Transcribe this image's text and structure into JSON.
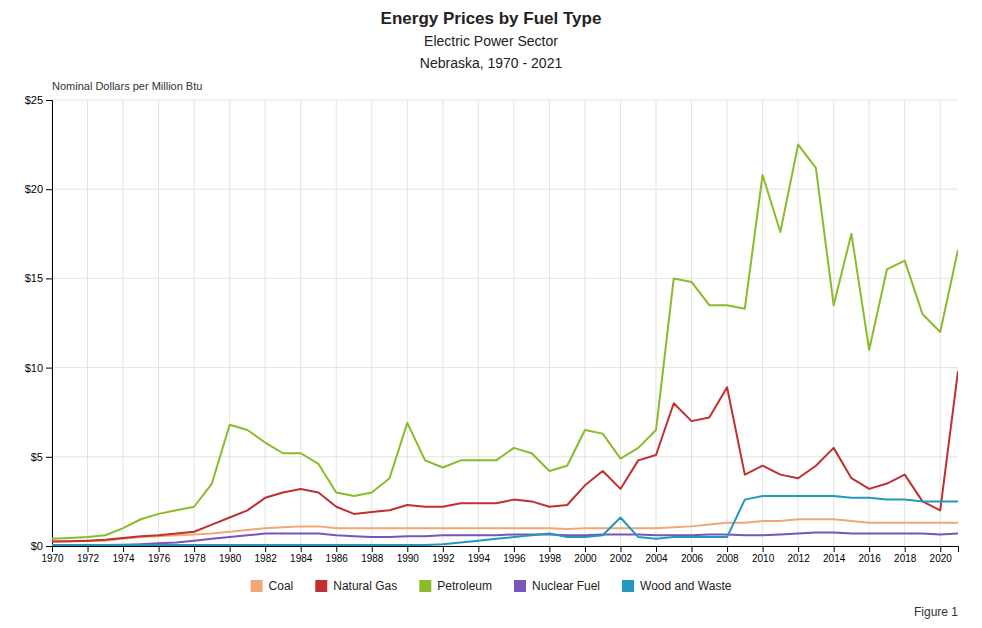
{
  "chart_data": {
    "type": "line",
    "title": [
      "Energy Prices by Fuel Type",
      "Electric Power Sector",
      "Nebraska, 1970 - 2021"
    ],
    "y_label": "Nominal Dollars per Million Btu",
    "annotations": [
      "Figure 1"
    ],
    "x": [
      1970,
      1971,
      1972,
      1973,
      1974,
      1975,
      1976,
      1977,
      1978,
      1979,
      1980,
      1981,
      1982,
      1983,
      1984,
      1985,
      1986,
      1987,
      1988,
      1989,
      1990,
      1991,
      1992,
      1993,
      1994,
      1995,
      1996,
      1997,
      1998,
      1999,
      2000,
      2001,
      2002,
      2003,
      2004,
      2005,
      2006,
      2007,
      2008,
      2009,
      2010,
      2011,
      2012,
      2013,
      2014,
      2015,
      2016,
      2017,
      2018,
      2019,
      2020,
      2021
    ],
    "series": [
      {
        "name": "Coal",
        "color": "#f0a878",
        "values": [
          0.25,
          0.27,
          0.28,
          0.3,
          0.4,
          0.5,
          0.55,
          0.6,
          0.65,
          0.7,
          0.8,
          0.9,
          1.0,
          1.05,
          1.1,
          1.1,
          1.0,
          1.0,
          1.0,
          1.0,
          1.0,
          1.0,
          1.0,
          1.0,
          1.0,
          1.0,
          1.0,
          1.0,
          1.0,
          0.95,
          1.0,
          1.0,
          1.0,
          1.0,
          1.0,
          1.05,
          1.1,
          1.2,
          1.3,
          1.3,
          1.4,
          1.4,
          1.5,
          1.5,
          1.5,
          1.4,
          1.3,
          1.3,
          1.3,
          1.3,
          1.3,
          1.3
        ]
      },
      {
        "name": "Natural Gas",
        "color": "#c03030",
        "values": [
          0.25,
          0.27,
          0.3,
          0.35,
          0.45,
          0.55,
          0.6,
          0.7,
          0.8,
          1.2,
          1.6,
          2.0,
          2.7,
          3.0,
          3.2,
          3.0,
          2.2,
          1.8,
          1.9,
          2.0,
          2.3,
          2.2,
          2.2,
          2.4,
          2.4,
          2.4,
          2.6,
          2.5,
          2.2,
          2.3,
          3.4,
          4.2,
          3.2,
          4.8,
          5.1,
          8.0,
          7.0,
          7.2,
          8.9,
          4.0,
          4.5,
          4.0,
          3.8,
          4.5,
          5.5,
          3.8,
          3.2,
          3.5,
          4.0,
          2.5,
          2.0,
          9.8
        ]
      },
      {
        "name": "Petroleum",
        "color": "#8abb2a",
        "values": [
          0.4,
          0.45,
          0.5,
          0.6,
          1.0,
          1.5,
          1.8,
          2.0,
          2.2,
          3.5,
          6.8,
          6.5,
          5.8,
          5.2,
          5.2,
          4.6,
          3.0,
          2.8,
          3.0,
          3.8,
          6.9,
          4.8,
          4.4,
          4.8,
          4.8,
          4.8,
          5.5,
          5.2,
          4.2,
          4.5,
          6.5,
          6.3,
          4.9,
          5.5,
          6.5,
          15.0,
          14.8,
          13.5,
          13.5,
          13.3,
          20.8,
          17.6,
          22.5,
          21.2,
          13.5,
          17.5,
          11.0,
          15.5,
          16.0,
          13.0,
          12.0,
          16.6
        ]
      },
      {
        "name": "Nuclear Fuel",
        "color": "#7755bb",
        "values": [
          0.05,
          0.05,
          0.06,
          0.06,
          0.07,
          0.1,
          0.15,
          0.2,
          0.3,
          0.4,
          0.5,
          0.6,
          0.7,
          0.7,
          0.7,
          0.7,
          0.6,
          0.55,
          0.5,
          0.5,
          0.55,
          0.55,
          0.6,
          0.6,
          0.6,
          0.6,
          0.65,
          0.65,
          0.65,
          0.6,
          0.6,
          0.65,
          0.65,
          0.65,
          0.6,
          0.6,
          0.6,
          0.65,
          0.65,
          0.6,
          0.6,
          0.65,
          0.7,
          0.75,
          0.75,
          0.7,
          0.7,
          0.7,
          0.7,
          0.7,
          0.65,
          0.7
        ]
      },
      {
        "name": "Wood and Waste",
        "color": "#2299bb",
        "values": [
          0.05,
          0.05,
          0.05,
          0.05,
          0.05,
          0.05,
          0.05,
          0.05,
          0.05,
          0.05,
          0.05,
          0.05,
          0.05,
          0.05,
          0.05,
          0.05,
          0.05,
          0.05,
          0.05,
          0.05,
          0.05,
          0.05,
          0.1,
          0.2,
          0.3,
          0.4,
          0.5,
          0.6,
          0.7,
          0.5,
          0.5,
          0.6,
          1.6,
          0.5,
          0.4,
          0.5,
          0.5,
          0.5,
          0.5,
          2.6,
          2.8,
          2.8,
          2.8,
          2.8,
          2.8,
          2.7,
          2.7,
          2.6,
          2.6,
          2.5,
          2.5,
          2.5
        ]
      }
    ],
    "xlim": [
      1970,
      2021
    ],
    "xticks": [
      1970,
      1972,
      1974,
      1976,
      1978,
      1980,
      1982,
      1984,
      1986,
      1988,
      1990,
      1992,
      1994,
      1996,
      1998,
      2000,
      2002,
      2004,
      2006,
      2008,
      2010,
      2012,
      2014,
      2016,
      2018,
      2020
    ],
    "ylim": [
      0,
      25
    ],
    "yticks": [
      {
        "value": 0,
        "label": "$0"
      },
      {
        "value": 5,
        "label": "$5"
      },
      {
        "value": 10,
        "label": "$10"
      },
      {
        "value": 15,
        "label": "$15"
      },
      {
        "value": 20,
        "label": "$20"
      },
      {
        "value": 25,
        "label": "$25"
      }
    ],
    "grid": true,
    "legend": "bottom"
  }
}
